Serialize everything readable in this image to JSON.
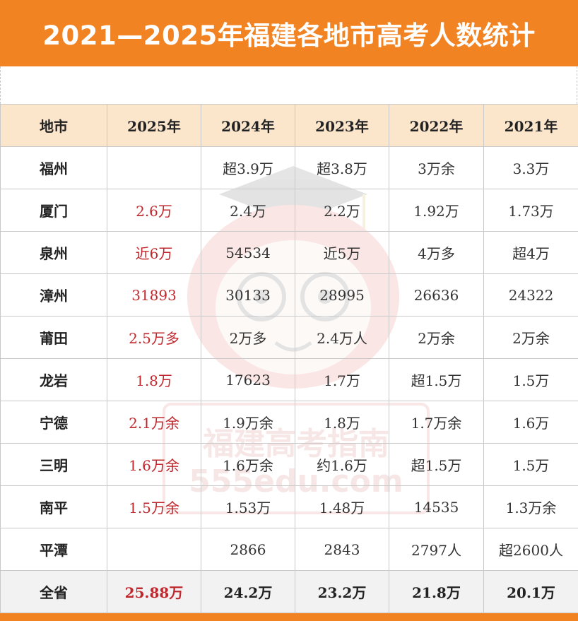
{
  "title": "2021—2025年福建各地市高考人数统计",
  "headers": [
    "地市",
    "2025年",
    "2024年",
    "2023年",
    "2022年",
    "2021年"
  ],
  "rows": [
    {
      "city": "福州",
      "y2025": "",
      "y2024": "超3.9万",
      "y2023": "超3.8万",
      "y2022": "3万余",
      "y2021": "3.3万"
    },
    {
      "city": "厦门",
      "y2025": "2.6万",
      "y2024": "2.4万",
      "y2023": "2.2万",
      "y2022": "1.92万",
      "y2021": "1.73万"
    },
    {
      "city": "泉州",
      "y2025": "近6万",
      "y2024": "54534",
      "y2023": "近5万",
      "y2022": "4万多",
      "y2021": "超4万"
    },
    {
      "city": "漳州",
      "y2025": "31893",
      "y2024": "30133",
      "y2023": "28995",
      "y2022": "26636",
      "y2021": "24322"
    },
    {
      "city": "莆田",
      "y2025": "2.5万多",
      "y2024": "2万多",
      "y2023": "2.4万人",
      "y2022": "2万余",
      "y2021": "2万余"
    },
    {
      "city": "龙岩",
      "y2025": "1.8万",
      "y2024": "17623",
      "y2023": "1.7万",
      "y2022": "超1.5万",
      "y2021": "1.5万"
    },
    {
      "city": "宁德",
      "y2025": "2.1万余",
      "y2024": "1.9万余",
      "y2023": "1.8万",
      "y2022": "1.7万余",
      "y2021": "1.6万"
    },
    {
      "city": "三明",
      "y2025": "1.6万余",
      "y2024": "1.6万余",
      "y2023": "约1.6万",
      "y2022": "超1.5万",
      "y2021": "1.5万"
    },
    {
      "city": "南平",
      "y2025": "1.5万余",
      "y2024": "1.53万",
      "y2023": "1.48万",
      "y2022": "14535",
      "y2021": "1.3万余"
    },
    {
      "city": "平潭",
      "y2025": "",
      "y2024": "2866",
      "y2023": "2843",
      "y2022": "2797人",
      "y2021": "超2600人"
    }
  ],
  "total": {
    "city": "全省",
    "y2025": "25.88万",
    "y2024": "24.2万",
    "y2023": "23.2万",
    "y2022": "21.8万",
    "y2021": "20.1万"
  },
  "watermark": {
    "line1": "福建高考指南",
    "line2": "555edu.com"
  },
  "colors": {
    "accent": "#f28322",
    "header_bg": "#fbe6cc",
    "highlight": "#c0282d",
    "total_bg": "#f2f2f2"
  }
}
